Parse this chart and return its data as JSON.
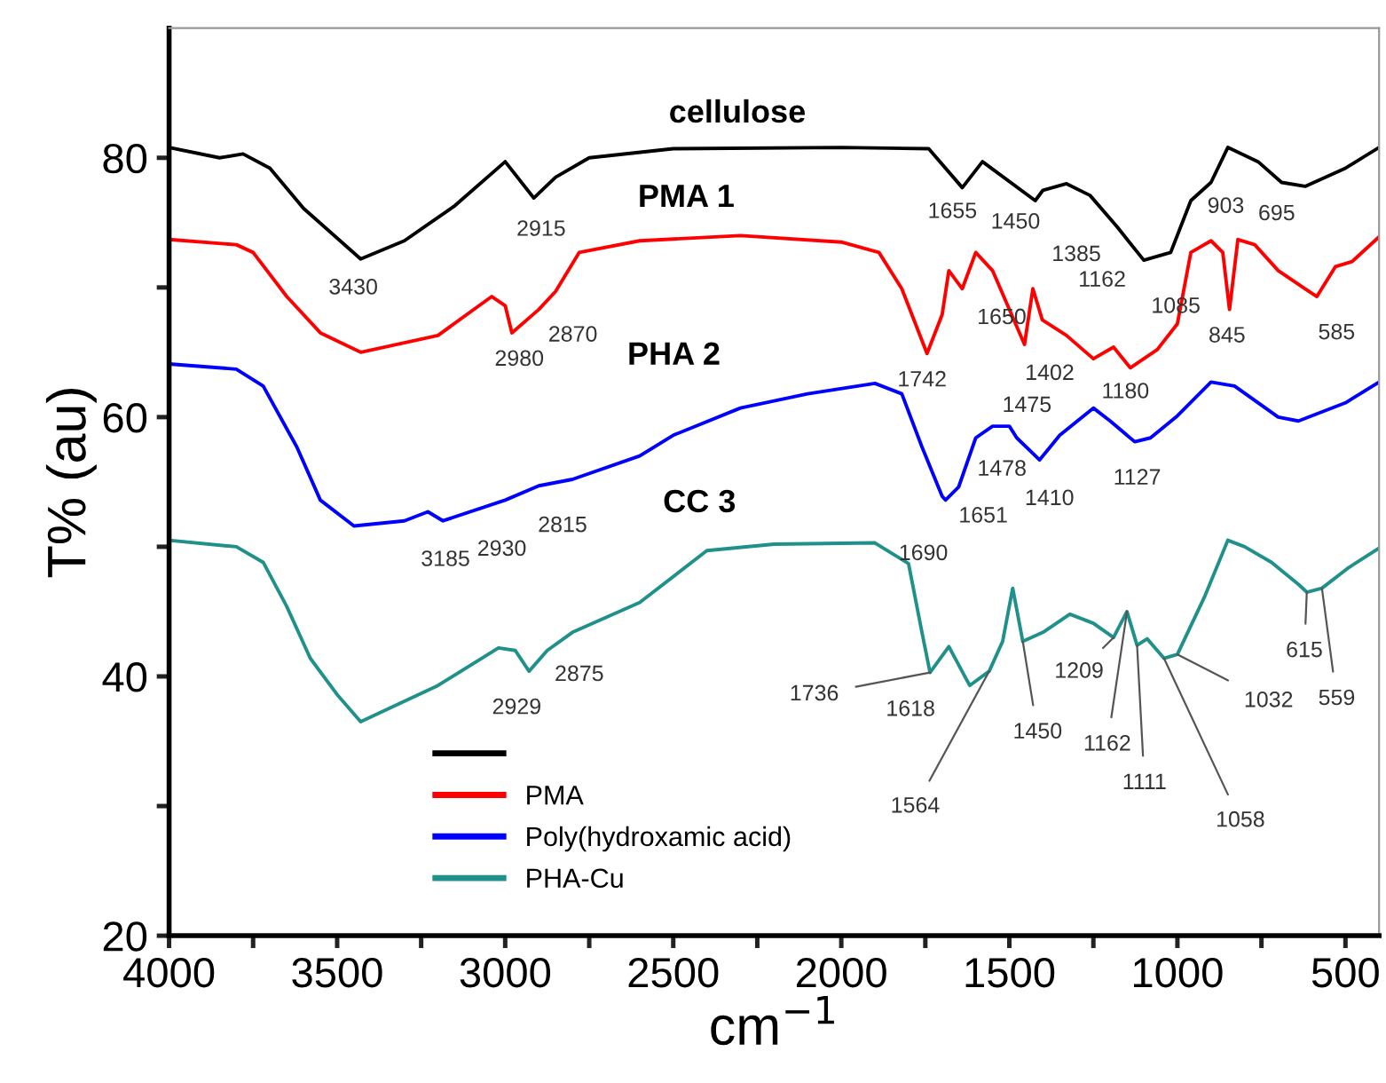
{
  "chart_data": {
    "type": "line",
    "xlabel": "cm$^{−1}$",
    "ylabel": "T% (au)",
    "xlim": [
      4000,
      400
    ],
    "ylim": [
      20,
      90
    ],
    "xticks": [
      4000,
      {
        "value": 3750,
        "label": null
      },
      3500,
      {
        "value": 3250,
        "label": null
      },
      3000,
      {
        "value": 2750,
        "label": null
      },
      2500,
      {
        "value": 2250,
        "label": null
      },
      2000,
      {
        "value": 1750,
        "label": null
      },
      1500,
      {
        "value": 1250,
        "label": null
      },
      1000,
      {
        "value": 750,
        "label": null
      },
      500
    ],
    "yticks": [
      20,
      {
        "value": 30,
        "label": null
      },
      40,
      {
        "value": 50,
        "label": null
      },
      60,
      {
        "value": 70,
        "label": null
      },
      80
    ],
    "grid": false,
    "legend": "bottom left",
    "marker": "none",
    "line_style": "solid",
    "series": [
      {
        "name": null,
        "color": "#000000",
        "x": [
          4000,
          3850,
          3780,
          3700,
          3600,
          3430,
          3300,
          3150,
          3000,
          2915,
          2850,
          2750,
          2500,
          2000,
          1740,
          1640,
          1580,
          1423,
          1400,
          1330,
          1260,
          1180,
          1100,
          1020,
          960,
          900,
          850,
          760,
          690,
          620,
          500,
          400
        ],
        "values": [
          80.8,
          80.0,
          80.3,
          79.2,
          76.1,
          72.2,
          73.6,
          76.3,
          79.7,
          76.9,
          78.5,
          80.0,
          80.7,
          80.8,
          80.7,
          77.7,
          79.7,
          76.7,
          77.5,
          78.0,
          77.1,
          74.7,
          72.1,
          72.7,
          76.7,
          78.1,
          80.8,
          79.7,
          78.1,
          77.8,
          79.2,
          80.8
        ]
      },
      {
        "name": "PMA",
        "color": "#ff0000",
        "x": [
          4000,
          3800,
          3750,
          3650,
          3550,
          3430,
          3200,
          3040,
          3000,
          2980,
          2900,
          2850,
          2780,
          2600,
          2300,
          2000,
          1888,
          1820,
          1745,
          1700,
          1680,
          1640,
          1600,
          1550,
          1455,
          1430,
          1402,
          1330,
          1250,
          1190,
          1140,
          1060,
          1000,
          960,
          900,
          865,
          845,
          820,
          770,
          700,
          620,
          585,
          530,
          480,
          400
        ],
        "values": [
          73.7,
          73.3,
          72.7,
          69.3,
          66.5,
          65.0,
          66.3,
          69.3,
          68.6,
          66.5,
          68.3,
          69.7,
          72.7,
          73.6,
          74.0,
          73.5,
          72.7,
          69.9,
          64.9,
          67.9,
          71.3,
          69.9,
          72.7,
          71.3,
          65.6,
          69.9,
          67.5,
          66.3,
          64.5,
          65.4,
          63.8,
          65.2,
          67.2,
          72.7,
          73.6,
          72.7,
          68.3,
          73.7,
          73.3,
          71.3,
          69.9,
          69.3,
          71.6,
          72.0,
          73.9
        ]
      },
      {
        "name": "Poly(hydroxamic acid)",
        "color": "#0000ff",
        "x": [
          4000,
          3800,
          3720,
          3620,
          3550,
          3450,
          3300,
          3230,
          3185,
          3000,
          2900,
          2800,
          2600,
          2500,
          2300,
          2100,
          1900,
          1820,
          1760,
          1700,
          1690,
          1651,
          1600,
          1550,
          1500,
          1478,
          1410,
          1350,
          1250,
          1200,
          1127,
          1080,
          1000,
          900,
          830,
          700,
          640,
          500,
          400
        ],
        "values": [
          64.1,
          63.7,
          62.4,
          57.7,
          53.6,
          51.6,
          52.0,
          52.7,
          52.0,
          53.6,
          54.7,
          55.2,
          57.0,
          58.6,
          60.7,
          61.8,
          62.6,
          61.8,
          57.7,
          53.9,
          53.6,
          54.6,
          58.4,
          59.3,
          59.3,
          58.4,
          56.7,
          58.6,
          60.7,
          59.7,
          58.1,
          58.4,
          60.1,
          62.7,
          62.4,
          60.0,
          59.7,
          61.1,
          62.7
        ]
      },
      {
        "name": "PHA-Cu",
        "color": "#20908a",
        "x": [
          4000,
          3800,
          3720,
          3650,
          3580,
          3500,
          3430,
          3200,
          3020,
          2970,
          2929,
          2875,
          2800,
          2600,
          2400,
          2200,
          1900,
          1800,
          1760,
          1736,
          1680,
          1618,
          1560,
          1520,
          1490,
          1460,
          1400,
          1320,
          1250,
          1190,
          1150,
          1120,
          1090,
          1040,
          1000,
          920,
          850,
          800,
          720,
          640,
          615,
          570,
          490,
          400
        ],
        "values": [
          50.5,
          50.0,
          48.8,
          45.4,
          41.4,
          38.6,
          36.5,
          39.3,
          42.2,
          42.0,
          40.4,
          42.0,
          43.4,
          45.7,
          49.7,
          50.2,
          50.3,
          48.7,
          43.4,
          40.3,
          42.3,
          39.3,
          40.4,
          42.7,
          46.8,
          42.7,
          43.4,
          44.8,
          44.1,
          43.0,
          45.0,
          42.4,
          42.9,
          41.4,
          41.7,
          46.1,
          50.5,
          50.0,
          48.8,
          47.1,
          46.5,
          46.8,
          48.4,
          49.9
        ]
      }
    ],
    "annotations": [
      {
        "text": "cellulose",
        "x": 2500,
        "y": 80.7
      },
      {
        "text": "PMA 1",
        "x": 2300,
        "y": 74.0
      },
      {
        "text": "PHA 2",
        "x": 2300,
        "y": 60.7
      },
      {
        "text": "CC 3",
        "x": 2400,
        "y": 49.7
      },
      {
        "text": "3430",
        "x": 3430,
        "y": 72.2
      },
      {
        "text": "2915",
        "x": 2915,
        "y": 76.9
      },
      {
        "text": "1655",
        "x": 1640,
        "y": 77.7
      },
      {
        "text": "1450",
        "x": 1423,
        "y": 76.7
      },
      {
        "text": "1385",
        "x": 1330,
        "y": 78.0
      },
      {
        "text": "1162",
        "x": 1180,
        "y": 74.7
      },
      {
        "text": "1085",
        "x": 1100,
        "y": 72.1
      },
      {
        "text": "903",
        "x": 900,
        "y": 78.1
      },
      {
        "text": "695",
        "x": 690,
        "y": 78.1
      },
      {
        "text": "2980",
        "x": 2980,
        "y": 66.5
      },
      {
        "text": "2870",
        "x": 2850,
        "y": 69.7
      },
      {
        "text": "1650",
        "x": 1640,
        "y": 69.9
      },
      {
        "text": "1742",
        "x": 1745,
        "y": 64.9
      },
      {
        "text": "1402",
        "x": 1402,
        "y": 67.5
      },
      {
        "text": "1475",
        "x": 1455,
        "y": 65.6
      },
      {
        "text": "1180",
        "x": 1140,
        "y": 63.8
      },
      {
        "text": "845",
        "x": 845,
        "y": 68.3
      },
      {
        "text": "585",
        "x": 585,
        "y": 69.3
      },
      {
        "text": "3185",
        "x": 3185,
        "y": 52.0
      },
      {
        "text": "2930",
        "x": 2900,
        "y": 54.7
      },
      {
        "text": "2815",
        "x": 2800,
        "y": 55.2
      },
      {
        "text": "1690",
        "x": 1690,
        "y": 53.6
      },
      {
        "text": "1651",
        "x": 1651,
        "y": 54.6
      },
      {
        "text": "1478",
        "x": 1478,
        "y": 58.4
      },
      {
        "text": "1410",
        "x": 1410,
        "y": 56.7
      },
      {
        "text": "1127",
        "x": 1127,
        "y": 58.1
      },
      {
        "text": "2929",
        "x": 2929,
        "y": 40.4
      },
      {
        "text": "2875",
        "x": 2875,
        "y": 42.0
      },
      {
        "text": "1736",
        "x": 1736,
        "y": 40.3
      },
      {
        "text": "1618",
        "x": 1618,
        "y": 39.3
      },
      {
        "text": "1564",
        "x": 1560,
        "y": 40.4
      },
      {
        "text": "1450",
        "x": 1460,
        "y": 42.7
      },
      {
        "text": "1209",
        "x": 1190,
        "y": 43.0
      },
      {
        "text": "1162",
        "x": 1150,
        "y": 45.0
      },
      {
        "text": "1111",
        "x": 1120,
        "y": 42.4
      },
      {
        "text": "1058",
        "x": 1040,
        "y": 41.4
      },
      {
        "text": "1032",
        "x": 1000,
        "y": 41.7
      },
      {
        "text": "615",
        "x": 615,
        "y": 46.5
      },
      {
        "text": "559",
        "x": 570,
        "y": 46.8
      }
    ]
  }
}
